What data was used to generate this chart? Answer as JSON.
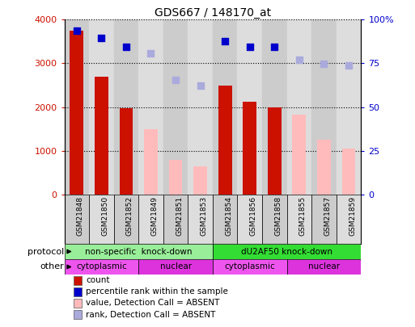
{
  "title": "GDS667 / 148170_at",
  "samples": [
    "GSM21848",
    "GSM21850",
    "GSM21852",
    "GSM21849",
    "GSM21851",
    "GSM21853",
    "GSM21854",
    "GSM21856",
    "GSM21858",
    "GSM21855",
    "GSM21857",
    "GSM21859"
  ],
  "count_values": [
    3750,
    2700,
    1980,
    null,
    null,
    null,
    2500,
    2130,
    2000,
    null,
    null,
    null
  ],
  "absent_value_values": [
    null,
    null,
    null,
    1500,
    800,
    650,
    null,
    null,
    null,
    1820,
    1250,
    1050
  ],
  "percentile_rank_present": [
    93.8,
    89.5,
    84.5,
    null,
    null,
    null,
    87.5,
    84.5,
    84.5,
    null,
    null,
    null
  ],
  "percentile_rank_absent": [
    null,
    null,
    null,
    80.8,
    65.5,
    62.3,
    null,
    null,
    null,
    77.0,
    74.8,
    74.0
  ],
  "ylim": [
    0,
    4000
  ],
  "y2lim": [
    0,
    100
  ],
  "y_ticks": [
    0,
    1000,
    2000,
    3000,
    4000
  ],
  "y2_ticks": [
    0,
    25,
    50,
    75,
    100
  ],
  "count_color": "#cc1100",
  "absent_value_color": "#ffbbbb",
  "rank_present_color": "#0000cc",
  "rank_absent_color": "#aaaadd",
  "col_bg_even": "#cccccc",
  "col_bg_odd": "#dddddd",
  "protocol_groups": [
    {
      "label": "non-specific  knock-down",
      "start": 0,
      "end": 6,
      "color": "#99ee99"
    },
    {
      "label": "dU2AF50 knock-down",
      "start": 6,
      "end": 12,
      "color": "#33dd33"
    }
  ],
  "other_groups": [
    {
      "label": "cytoplasmic",
      "start": 0,
      "end": 3,
      "color": "#ee55ee"
    },
    {
      "label": "nuclear",
      "start": 3,
      "end": 6,
      "color": "#dd33dd"
    },
    {
      "label": "cytoplasmic",
      "start": 6,
      "end": 9,
      "color": "#ee55ee"
    },
    {
      "label": "nuclear",
      "start": 9,
      "end": 12,
      "color": "#dd33dd"
    }
  ],
  "legend_items": [
    {
      "label": "count",
      "color": "#cc1100"
    },
    {
      "label": "percentile rank within the sample",
      "color": "#0000cc"
    },
    {
      "label": "value, Detection Call = ABSENT",
      "color": "#ffbbbb"
    },
    {
      "label": "rank, Detection Call = ABSENT",
      "color": "#aaaadd"
    }
  ]
}
